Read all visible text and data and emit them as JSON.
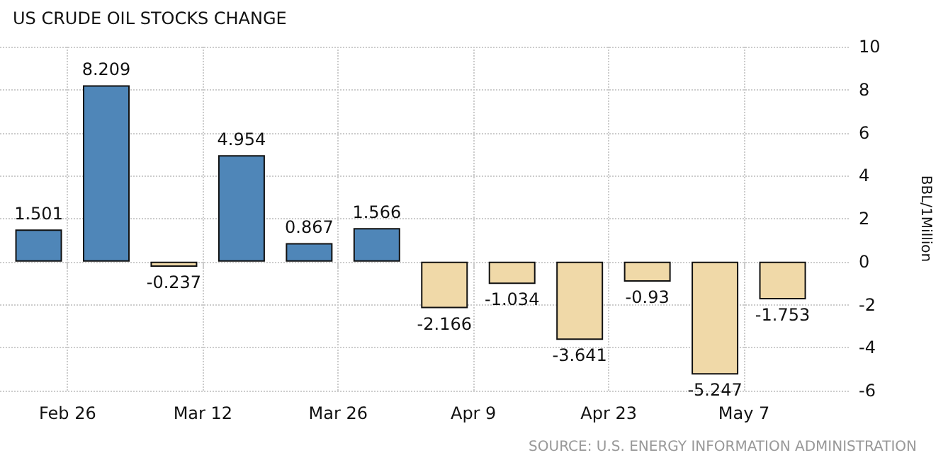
{
  "chart_data": {
    "type": "bar",
    "title": "US CRUDE OIL STOCKS CHANGE",
    "ylabel": "BBL/1Million",
    "x": [
      "--02-23",
      "--03-02",
      "--03-09",
      "--03-16",
      "--03-23",
      "--03-30",
      "--04-06",
      "--04-13",
      "--04-20",
      "--04-27",
      "--05-04",
      "--05-11"
    ],
    "values": [
      1.501,
      8.209,
      -0.237,
      4.954,
      0.867,
      1.566,
      -2.166,
      -1.034,
      -3.641,
      -0.93,
      -5.247,
      -1.753
    ],
    "colors": [
      "#4f86b8",
      "#4f86b8",
      "#f0d9a8",
      "#4f86b8",
      "#4f86b8",
      "#4f86b8",
      "#f0d9a8",
      "#f0d9a8",
      "#f0d9a8",
      "#f0d9a8",
      "#f0d9a8",
      "#f0d9a8"
    ],
    "data_labels": true,
    "xlim": [
      "--02-19",
      "--05-18"
    ],
    "xticks": [
      {
        "value": "--02-26",
        "label": "Feb 26"
      },
      {
        "value": "--03-12",
        "label": "Mar 12"
      },
      {
        "value": "--03-26",
        "label": "Mar 26"
      },
      {
        "value": "--04-09",
        "label": "Apr 9"
      },
      {
        "value": "--04-23",
        "label": "Apr 23"
      },
      {
        "value": "--05-07",
        "label": "May 7"
      }
    ],
    "ylim": [
      -6,
      10
    ],
    "yticks": [
      -6,
      -4,
      -2,
      0,
      2,
      4,
      6,
      8,
      10
    ],
    "grid": true,
    "annotations": [
      "SOURCE: U.S. ENERGY INFORMATION ADMINISTRATION"
    ]
  }
}
